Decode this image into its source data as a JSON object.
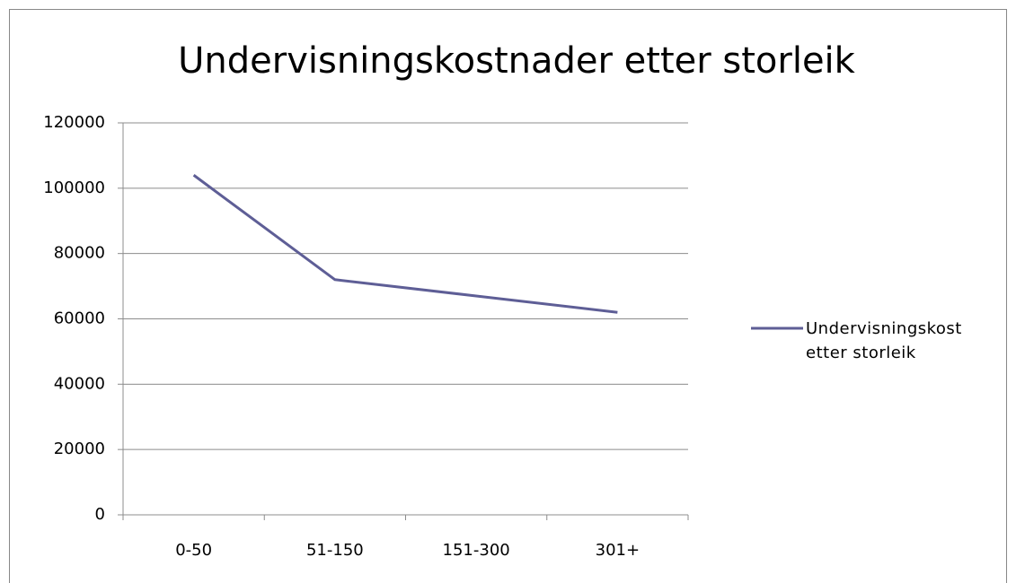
{
  "chart_data": {
    "type": "line",
    "title": "Undervisningskostnader etter storleik",
    "categories": [
      "0-50",
      "51-150",
      "151-300",
      "301+"
    ],
    "series": [
      {
        "name": "Undervisningskost etter storleik",
        "color": "#5e5e96",
        "values": [
          104000,
          72000,
          67000,
          62000
        ]
      }
    ],
    "ylim": [
      0,
      120000
    ],
    "yticks": [
      0,
      20000,
      40000,
      60000,
      80000,
      100000,
      120000
    ],
    "grid": true,
    "legend": "right"
  }
}
